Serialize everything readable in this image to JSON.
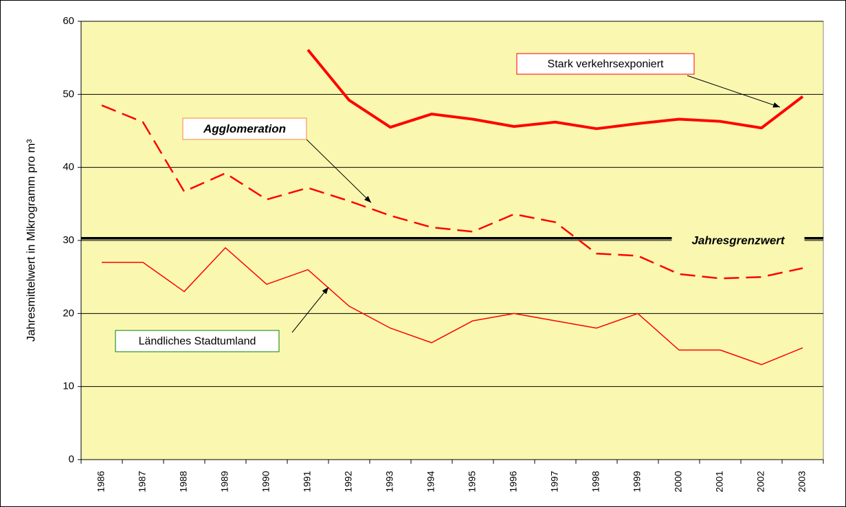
{
  "chart_data": {
    "type": "line",
    "ylabel": "Jahresmittelwert in Mikrogramm pro m³",
    "categories": [
      "1986",
      "1987",
      "1988",
      "1989",
      "1990",
      "1991",
      "1992",
      "1993",
      "1994",
      "1995",
      "1996",
      "1997",
      "1998",
      "1999",
      "2000",
      "2001",
      "2002",
      "2003"
    ],
    "series": [
      {
        "name": "Stark verkehrsexponiert",
        "color": "#ff0000",
        "style": "thick",
        "values": [
          null,
          null,
          null,
          null,
          null,
          56.1,
          49.2,
          45.5,
          47.3,
          46.6,
          45.6,
          46.2,
          45.3,
          46.0,
          46.6,
          46.3,
          45.4,
          49.7
        ]
      },
      {
        "name": "Agglomeration",
        "color": "#ff0000",
        "style": "dashed",
        "values": [
          48.5,
          46.2,
          36.7,
          39.2,
          35.6,
          37.2,
          35.4,
          33.4,
          31.8,
          31.2,
          33.6,
          32.5,
          28.2,
          27.9,
          25.4,
          24.8,
          25.0,
          26.2
        ]
      },
      {
        "name": "Ländliches Stadtumland",
        "color": "#ff0000",
        "style": "thin",
        "values": [
          27,
          27,
          23,
          29,
          24,
          26,
          21,
          18,
          16,
          19,
          20,
          19,
          18,
          20,
          15,
          15,
          13,
          15.3
        ]
      }
    ],
    "limit": {
      "label": "Jahresgrenzwert",
      "value": 30.3,
      "color": "#000000"
    },
    "ylim": [
      0,
      60
    ],
    "yticks": [
      0,
      10,
      20,
      30,
      40,
      50,
      60
    ],
    "grid": true,
    "plot_color": "#faf8b0"
  }
}
